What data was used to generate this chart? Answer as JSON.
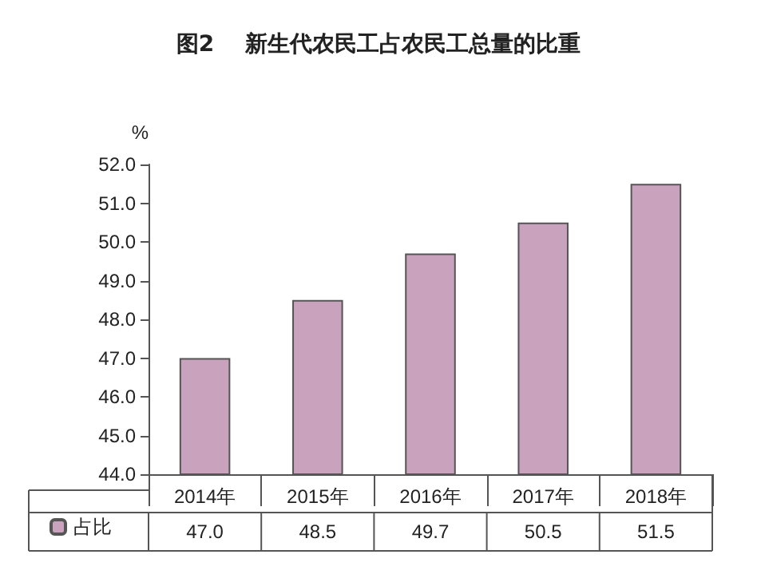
{
  "chart_data": {
    "type": "bar",
    "title": "图2    新生代农民工占农民工总量的比重",
    "ylabel": "%",
    "categories": [
      "2014年",
      "2015年",
      "2016年",
      "2017年",
      "2018年"
    ],
    "series": [
      {
        "name": "占比",
        "color": "#c9a3bd",
        "values": [
          47.0,
          48.5,
          49.7,
          50.5,
          51.5
        ],
        "value_labels": [
          "47.0",
          "48.5",
          "49.7",
          "50.5",
          "51.5"
        ]
      }
    ],
    "ylim": [
      44,
      52
    ],
    "yticks": [
      {
        "value": 44,
        "label": "44.0"
      },
      {
        "value": 45,
        "label": "45.0"
      },
      {
        "value": 46,
        "label": "46.0"
      },
      {
        "value": 47,
        "label": "47.0"
      },
      {
        "value": 48,
        "label": "48.0"
      },
      {
        "value": 49,
        "label": "49.0"
      },
      {
        "value": 50,
        "label": "50.0"
      },
      {
        "value": 51,
        "label": "51.0"
      },
      {
        "value": 52,
        "label": "52.0"
      }
    ],
    "grid": false,
    "legend": "bottom left"
  }
}
